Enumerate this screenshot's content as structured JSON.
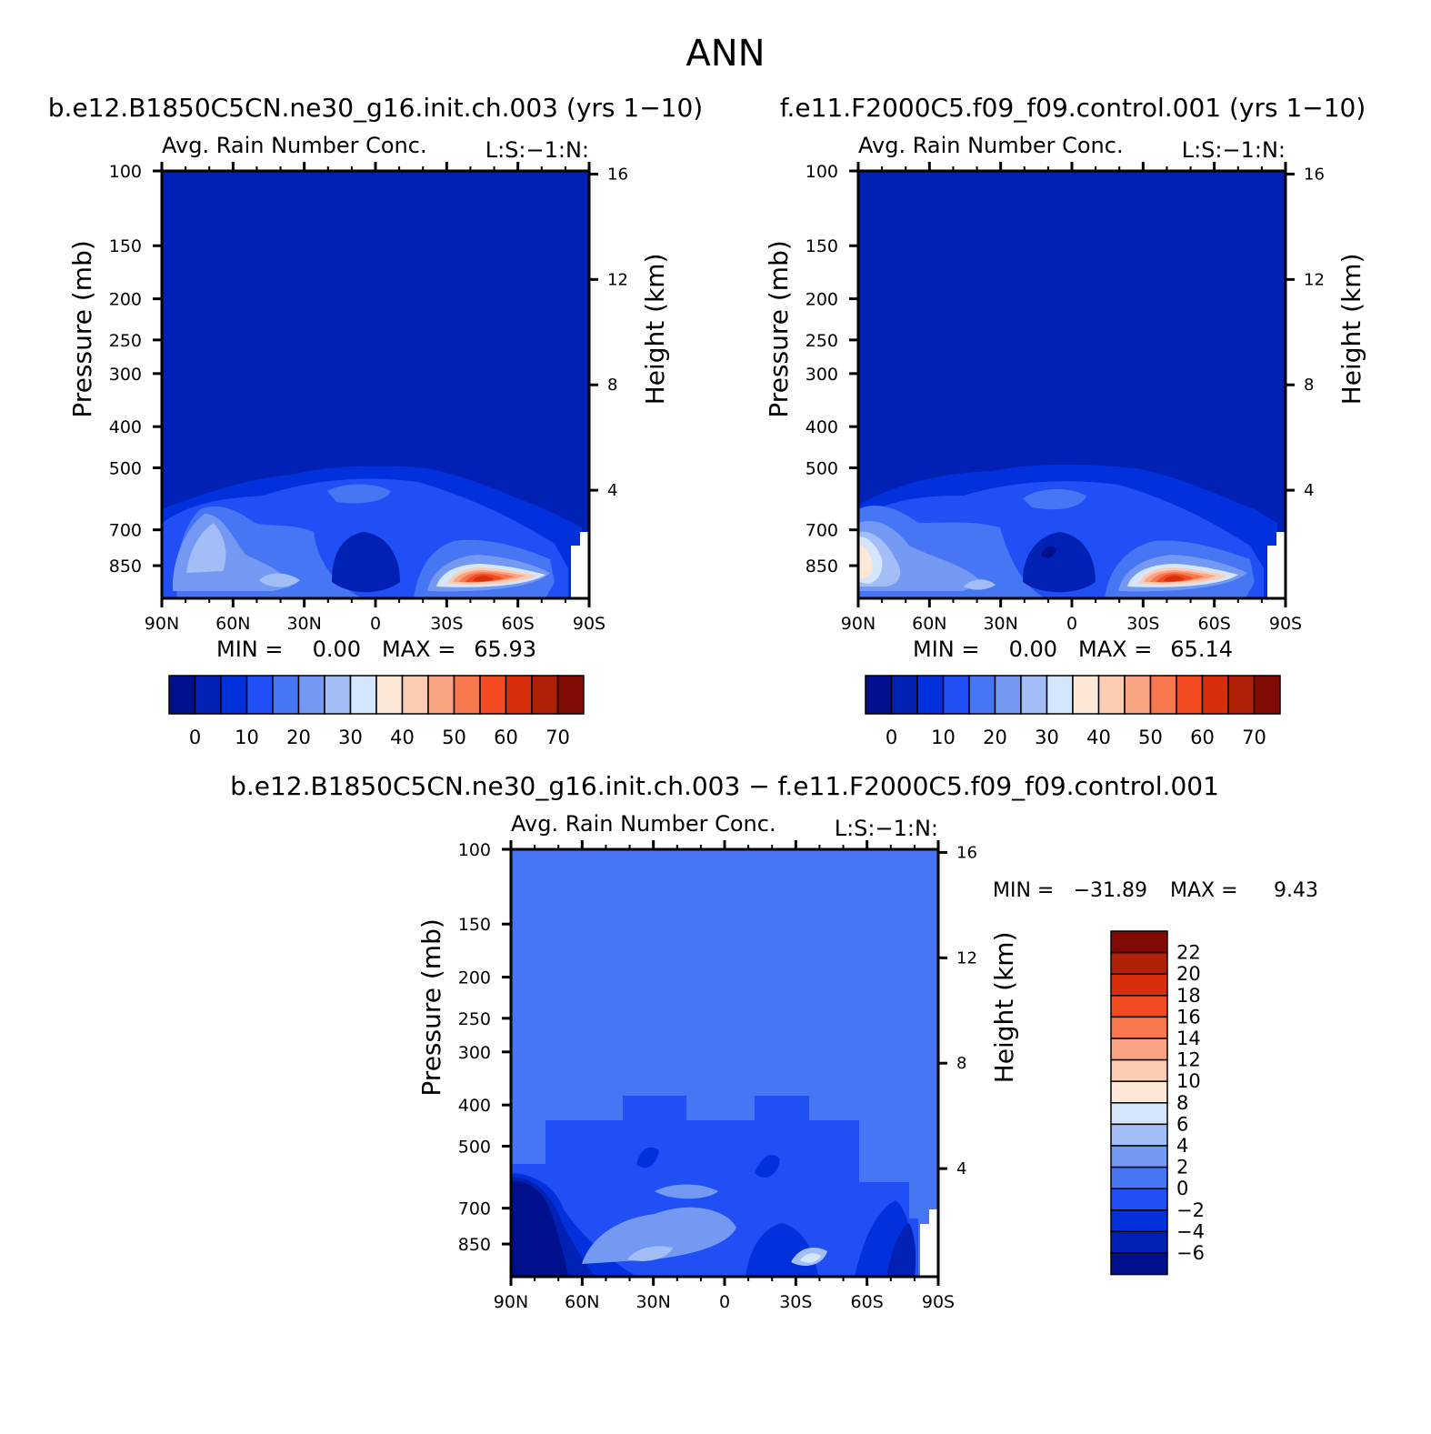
{
  "figure": {
    "title": "ANN"
  },
  "palette": {
    "levels15": [
      "#00108c",
      "#0021b4",
      "#0031dc",
      "#1f4ff5",
      "#4676f3",
      "#7499f2",
      "#a3bdf6",
      "#d3e6fb",
      "#fde7d6",
      "#fccbb4",
      "#f8a483",
      "#f7774e",
      "#f44a21",
      "#d92e0c",
      "#b12107",
      "#800b02"
    ],
    "levels16": [
      "#00108c",
      "#0021b4",
      "#0031dc",
      "#1f4ff5",
      "#4676f3",
      "#7499f2",
      "#a3bdf6",
      "#d3e6fb",
      "#fde7d6",
      "#fccbb4",
      "#f8a483",
      "#f7774e",
      "#f44a21",
      "#d92e0c",
      "#b12107",
      "#800b02"
    ]
  },
  "chart_data": [
    {
      "type": "heatmap",
      "case": "b.e12.B1850C5CN.ne30_g16.init.ch.003 (yrs 1−10)",
      "subtitle": "Avg. Rain Number Conc.",
      "tag": "L:S:−1:N:",
      "ylabel": "Pressure (mb)",
      "ylabel_right": "Height (km)",
      "xticks": [
        "90N",
        "60N",
        "30N",
        "0",
        "30S",
        "60S",
        "90S"
      ],
      "yticks": [
        "100",
        "150",
        "200",
        "250",
        "300",
        "400",
        "500",
        "700",
        "850"
      ],
      "right_ticks": [
        "16",
        "12",
        "8",
        "4"
      ],
      "min_label": "MIN =",
      "min_value": "0.00",
      "max_label": "MAX =",
      "max_value": "65.93",
      "colorbar_ticks": [
        "0",
        "10",
        "20",
        "30",
        "40",
        "50",
        "60",
        "70"
      ],
      "peak": {
        "lat": -46,
        "pressure": 850,
        "value": 65.93
      }
    },
    {
      "type": "heatmap",
      "case": "f.e11.F2000C5.f09_f09.control.001 (yrs 1−10)",
      "subtitle": "Avg. Rain Number Conc.",
      "tag": "L:S:−1:N:",
      "ylabel": "Pressure (mb)",
      "ylabel_right": "Height (km)",
      "xticks": [
        "90N",
        "60N",
        "30N",
        "0",
        "30S",
        "60S",
        "90S"
      ],
      "yticks": [
        "100",
        "150",
        "200",
        "250",
        "300",
        "400",
        "500",
        "700",
        "850"
      ],
      "right_ticks": [
        "16",
        "12",
        "8",
        "4"
      ],
      "min_label": "MIN =",
      "min_value": "0.00",
      "max_label": "MAX =",
      "max_value": "65.14",
      "colorbar_ticks": [
        "0",
        "10",
        "20",
        "30",
        "40",
        "50",
        "60",
        "70"
      ],
      "peak": {
        "lat": -46,
        "pressure": 850,
        "value": 65.14
      }
    },
    {
      "type": "heatmap",
      "case": "b.e12.B1850C5CN.ne30_g16.init.ch.003 − f.e11.F2000C5.f09_f09.control.001",
      "subtitle": "Avg. Rain Number Conc.",
      "tag": "L:S:−1:N:",
      "ylabel": "Pressure (mb)",
      "ylabel_right": "Height (km)",
      "xticks": [
        "90N",
        "60N",
        "30N",
        "0",
        "30S",
        "60S",
        "90S"
      ],
      "yticks": [
        "100",
        "150",
        "200",
        "250",
        "300",
        "400",
        "500",
        "700",
        "850"
      ],
      "right_ticks": [
        "16",
        "12",
        "8",
        "4"
      ],
      "min_label": "MIN =",
      "min_value": "−31.89",
      "max_label": "MAX =",
      "max_value": "9.43",
      "colorbar_ticks": [
        "22",
        "20",
        "18",
        "16",
        "14",
        "12",
        "10",
        "8",
        "6",
        "4",
        "2",
        "0",
        "−2",
        "−4",
        "−6"
      ]
    }
  ]
}
